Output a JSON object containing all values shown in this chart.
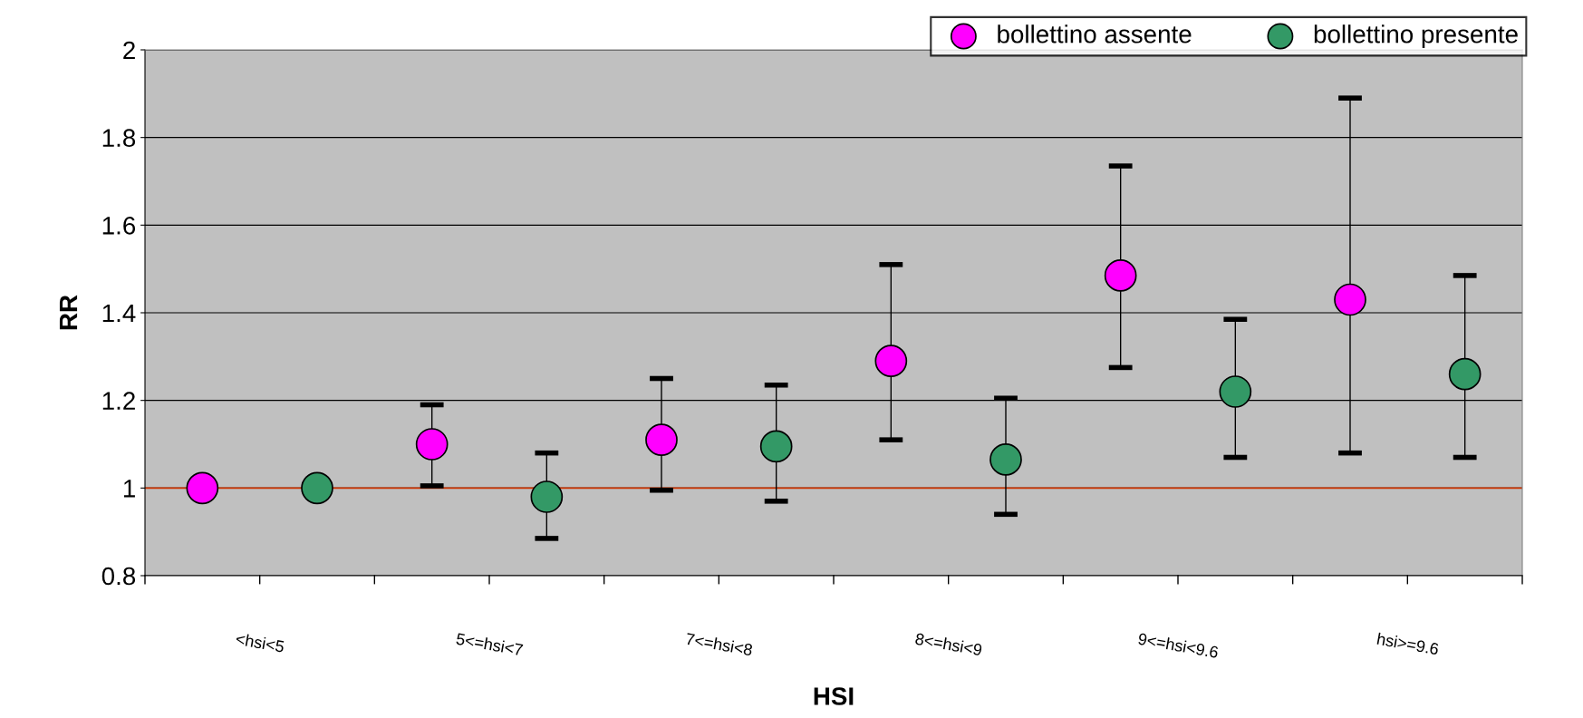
{
  "chart_data": {
    "type": "scatter",
    "xlabel": "HSI",
    "ylabel": "RR",
    "categories": [
      "<hsi<5",
      "5<=hsi<7",
      "7<=hsi<8",
      "8<=hsi<9",
      "9<=hsi<9.6",
      "hsi>=9.6"
    ],
    "series": [
      {
        "name": "bollettino assente",
        "color": "#ff00ff",
        "values": [
          1.0,
          1.1,
          1.11,
          1.29,
          1.485,
          1.43
        ],
        "errors": [
          null,
          [
            1.005,
            1.19
          ],
          [
            0.995,
            1.25
          ],
          [
            1.11,
            1.51
          ],
          [
            1.275,
            1.735
          ],
          [
            1.08,
            1.89
          ]
        ]
      },
      {
        "name": "bollettino presente",
        "color": "#339966",
        "values": [
          1.0,
          0.98,
          1.095,
          1.065,
          1.22,
          1.26
        ],
        "errors": [
          null,
          [
            0.885,
            1.08
          ],
          [
            0.97,
            1.235
          ],
          [
            0.94,
            1.205
          ],
          [
            1.07,
            1.385
          ],
          [
            1.07,
            1.485
          ]
        ]
      }
    ],
    "ylim": [
      0.8,
      2
    ],
    "yticks": [
      0.8,
      1,
      1.2,
      1.4,
      1.6,
      1.8,
      2
    ],
    "ref_lines": [
      {
        "axis": "y",
        "value": 1,
        "color": "#cc3300"
      }
    ],
    "grid": "y",
    "legend": "top right",
    "marker": "circle"
  }
}
